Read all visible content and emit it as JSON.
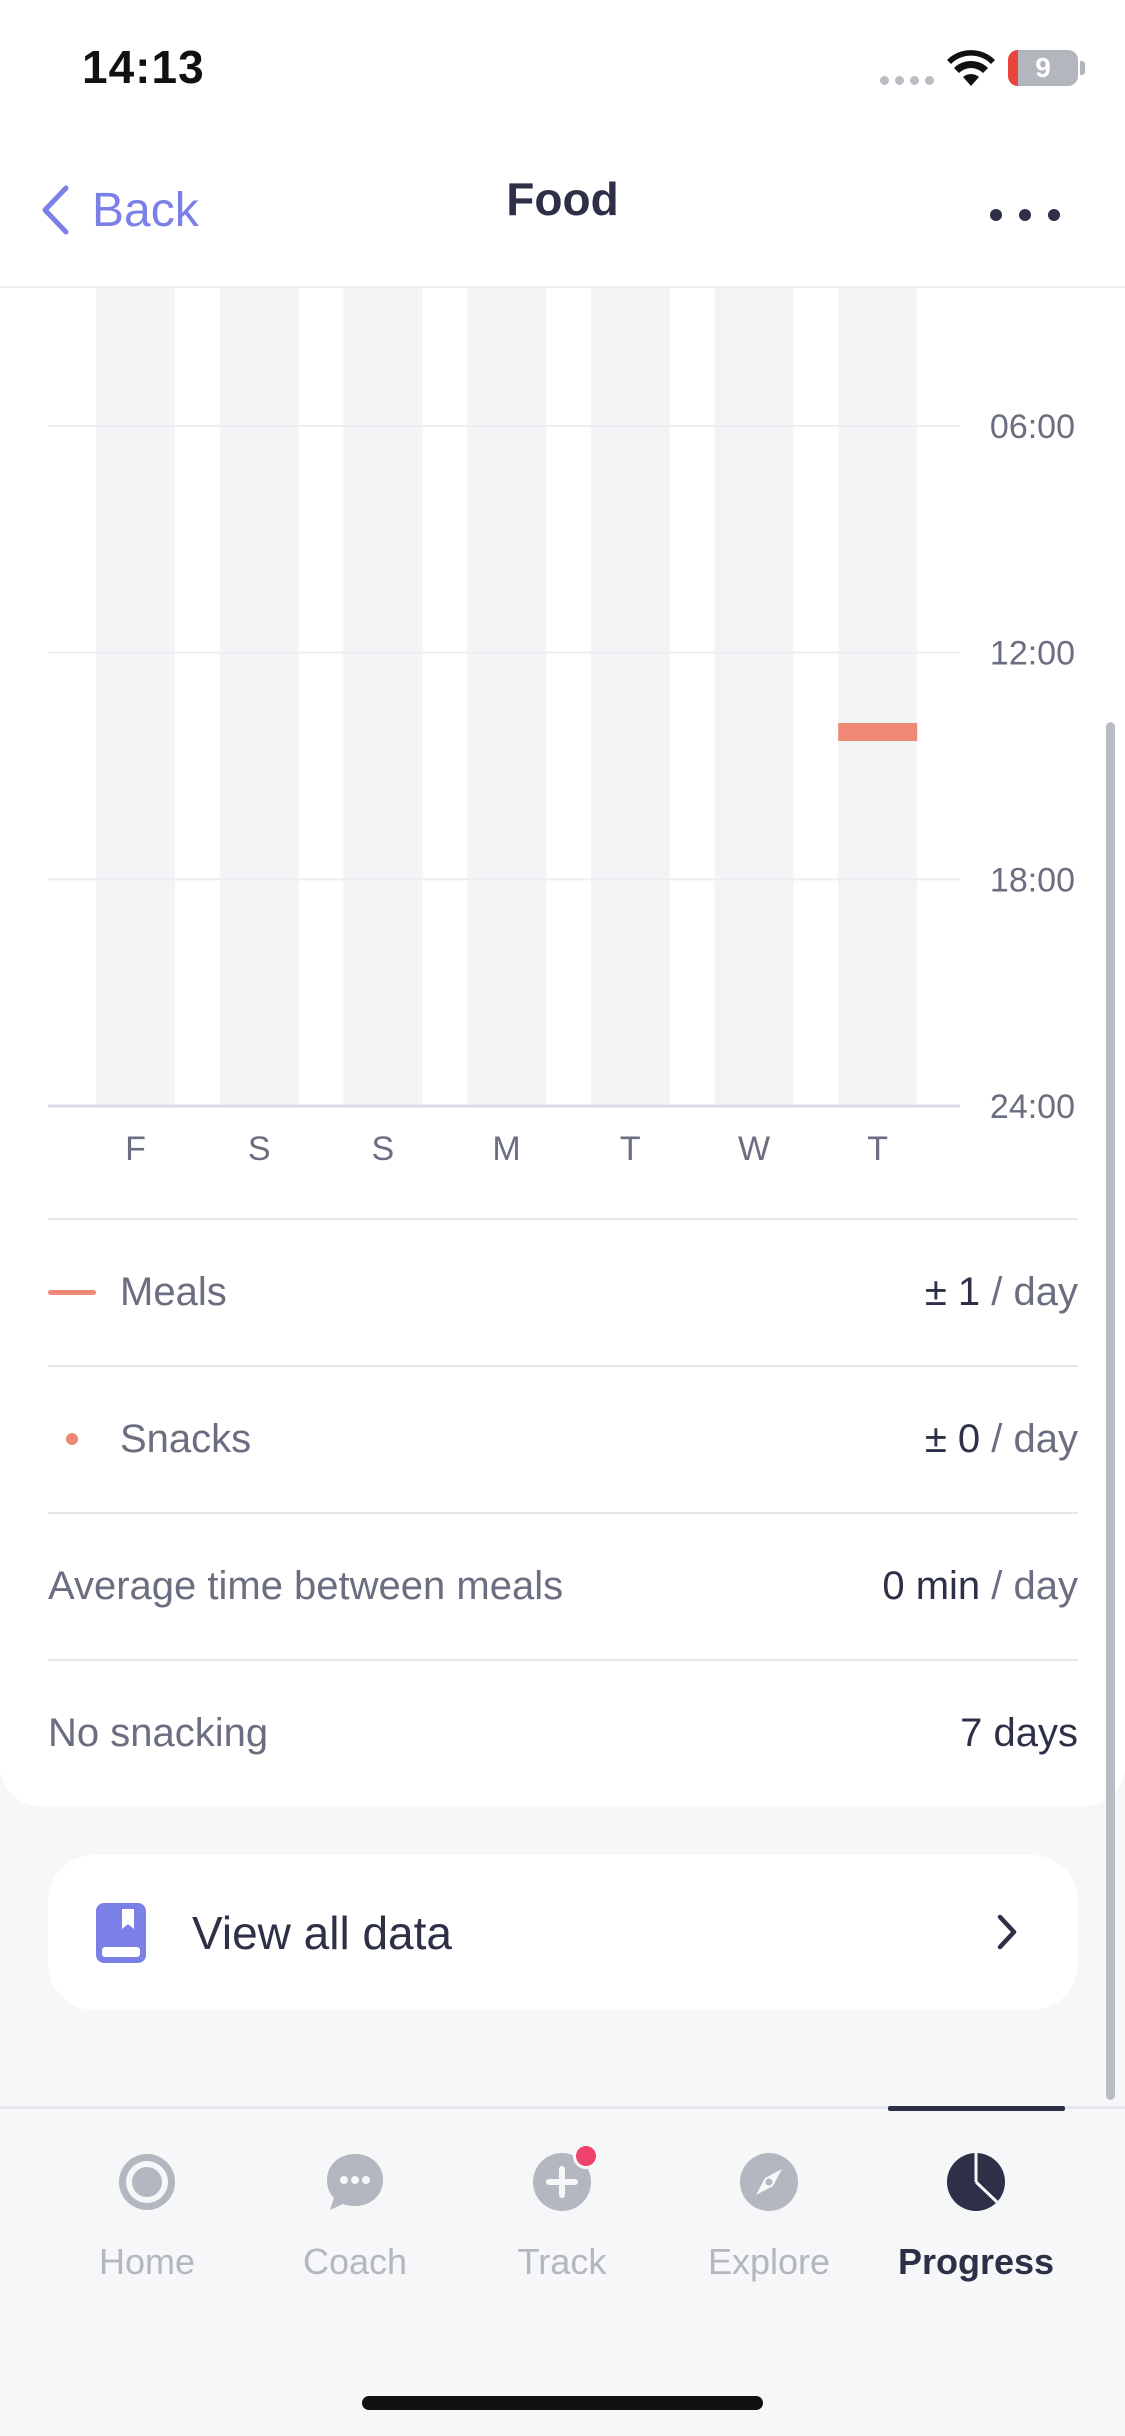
{
  "status_bar": {
    "time": "14:13",
    "battery": "9"
  },
  "nav": {
    "back_label": "Back",
    "title": "Food"
  },
  "chart_data": {
    "type": "bar",
    "categories": [
      "F",
      "S",
      "S",
      "M",
      "T",
      "W",
      "T"
    ],
    "y_ticks": [
      "06:00",
      "12:00",
      "18:00",
      "24:00"
    ],
    "series": [
      {
        "name": "Meals",
        "values": [
          [],
          [],
          [],
          [],
          [],
          [],
          [
            14.1
          ]
        ]
      }
    ],
    "ylim": [
      0,
      24
    ],
    "y_reversed": true,
    "grid": true,
    "colors": {
      "column": "#f3f4f6",
      "meal": "#f08876",
      "grid": "#eceef2"
    }
  },
  "stats": {
    "meals": {
      "label": "Meals",
      "value": "± 1",
      "unit": "/ day"
    },
    "snacks": {
      "label": "Snacks",
      "value": "± 0",
      "unit": "/ day"
    },
    "avg_time": {
      "label": "Average time between meals",
      "value": "0 min",
      "unit": "/ day"
    },
    "no_snacking": {
      "label": "No snacking",
      "value": "7 days"
    }
  },
  "view_all": {
    "label": "View all data"
  },
  "tabs": [
    {
      "label": "Home",
      "icon": "home-icon"
    },
    {
      "label": "Coach",
      "icon": "chat-bubble-icon"
    },
    {
      "label": "Track",
      "icon": "plus-circle-icon"
    },
    {
      "label": "Explore",
      "icon": "compass-icon"
    },
    {
      "label": "Progress",
      "icon": "pie-chart-icon"
    }
  ],
  "colors": {
    "accent": "#7b7fe8",
    "dark": "#2d3047",
    "muted": "#6b6e80",
    "badge": "#f0436b"
  }
}
